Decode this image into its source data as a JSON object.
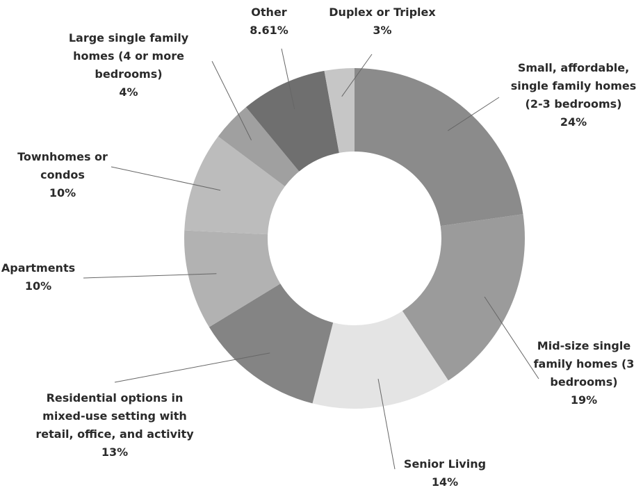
{
  "chart_data": {
    "type": "donut",
    "categories": [
      "Small, affordable, single family homes (2-3 bedrooms)",
      "Mid-size single family homes (3 bedrooms)",
      "Senior Living",
      "Residential options in mixed-use setting with retail, office, and activity",
      "Apartments",
      "Townhomes or condos",
      "Large single family homes (4 or more bedrooms)",
      "Other",
      "Duplex or Triplex"
    ],
    "values": [
      24,
      19,
      14,
      13,
      10,
      10,
      4,
      8.61,
      3
    ],
    "value_labels": [
      "24%",
      "19%",
      "14%",
      "13%",
      "10%",
      "10%",
      "4%",
      "8.61%",
      "3%"
    ],
    "colors": [
      "#8b8b8b",
      "#9b9b9b",
      "#e4e4e4",
      "#848484",
      "#b2b2b2",
      "#bcbcbc",
      "#a0a0a0",
      "#6f6f6f",
      "#c6c6c6"
    ]
  }
}
